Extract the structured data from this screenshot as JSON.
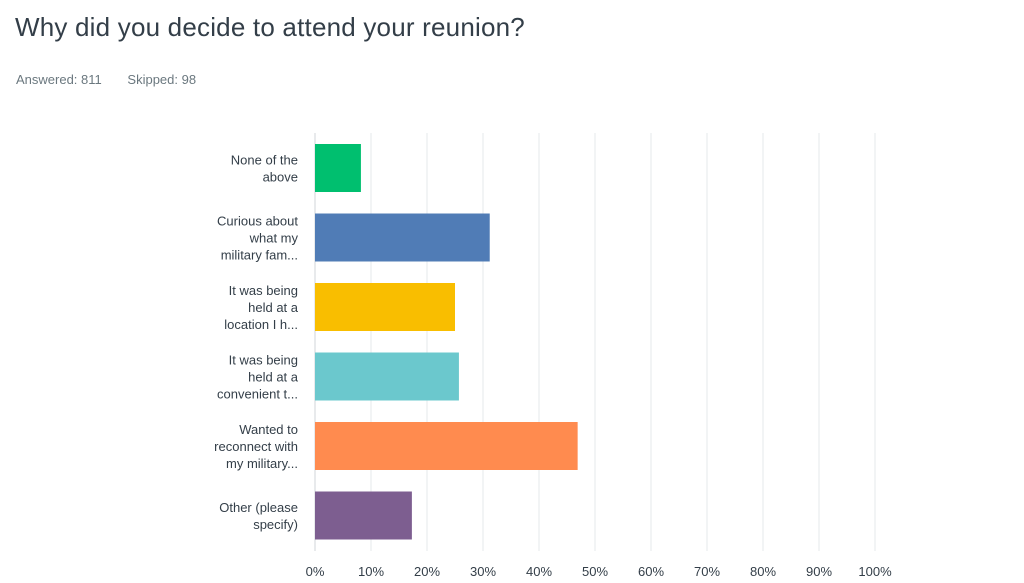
{
  "question": {
    "title": "Why did you decide to attend your reunion?",
    "answered_label": "Answered:",
    "answered_count": "811",
    "skipped_label": "Skipped:",
    "skipped_count": "98"
  },
  "colors": {
    "grid": "#e6e9eb",
    "axis": "#d0d5d8",
    "text": "#333e48",
    "muted": "#6b787f"
  },
  "chart_data": {
    "type": "bar",
    "orientation": "horizontal",
    "title": "Why did you decide to attend your reunion?",
    "xlabel": "",
    "ylabel": "",
    "xlim": [
      0,
      100
    ],
    "grid": true,
    "legend": "none",
    "ticks": [
      "0%",
      "10%",
      "20%",
      "30%",
      "40%",
      "50%",
      "60%",
      "70%",
      "80%",
      "90%",
      "100%"
    ],
    "categories": [
      [
        "None of the",
        "above"
      ],
      [
        "Curious about",
        "what my",
        "military fam..."
      ],
      [
        "It was being",
        "held at a",
        "location I h..."
      ],
      [
        "It was being",
        "held at a",
        "convenient t..."
      ],
      [
        "Wanted to",
        "reconnect with",
        "my military..."
      ],
      [
        "Other (please",
        "specify)"
      ]
    ],
    "values": [
      8.2,
      31.2,
      25.0,
      25.7,
      46.9,
      17.3
    ],
    "colors": [
      "#00bf6f",
      "#507cb6",
      "#f9be00",
      "#6bc8cd",
      "#ff8b4f",
      "#7d5e90"
    ]
  }
}
